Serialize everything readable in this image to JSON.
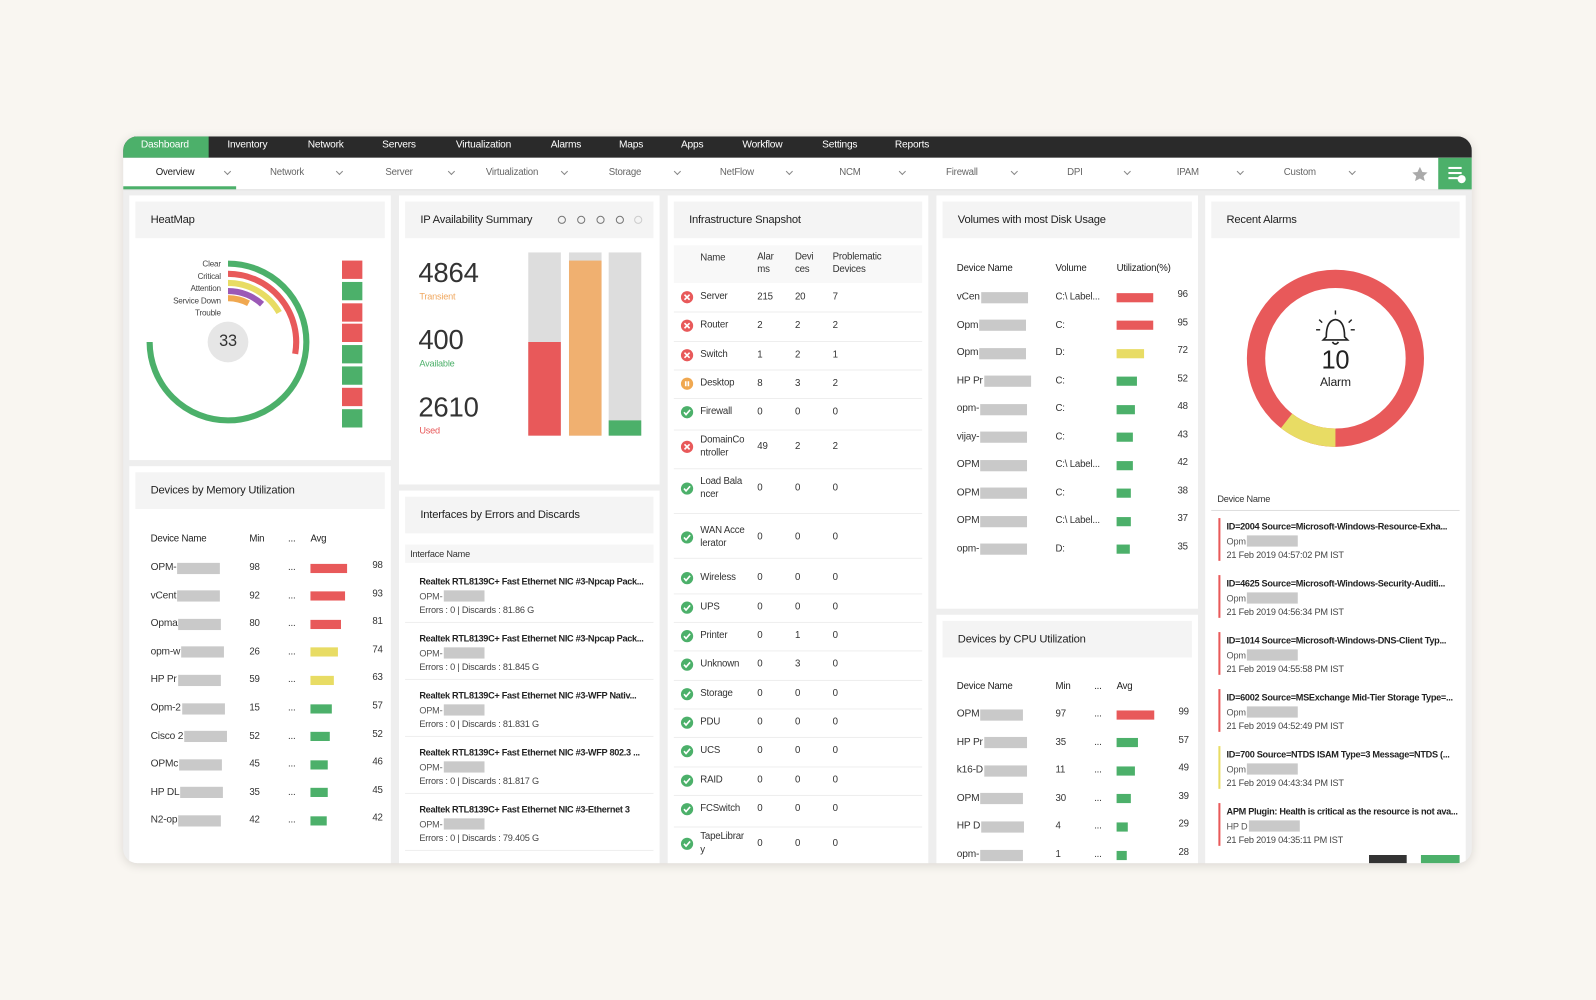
{
  "nav": {
    "tabs": [
      "Dashboard",
      "Inventory",
      "Network",
      "Servers",
      "Virtualization",
      "Alarms",
      "Maps",
      "Apps",
      "Workflow",
      "Settings",
      "Reports"
    ]
  },
  "subnav": {
    "tabs": [
      "Overview",
      "Network",
      "Server",
      "Virtualization",
      "Storage",
      "NetFlow",
      "NCM",
      "Firewall",
      "DPI",
      "IPAM",
      "Custom"
    ]
  },
  "heatmap": {
    "title": "HeatMap",
    "legend": [
      "Clear",
      "Critical",
      "Attention",
      "Service Down",
      "Trouble"
    ],
    "total": 33
  },
  "ip_availability": {
    "title": "IP Availability Summary",
    "stats": [
      {
        "value": 4864,
        "label": "Transient",
        "color": "#f0a860"
      },
      {
        "value": 400,
        "label": "Available",
        "color": "#4cb06a"
      },
      {
        "value": 2610,
        "label": "Used",
        "color": "#e8595a"
      }
    ]
  },
  "infrastructure": {
    "title": "Infrastructure Snapshot",
    "columns": [
      "Name",
      "Alarms",
      "Devices",
      "Problematic Devices"
    ],
    "rows": [
      {
        "icon": "cross",
        "color": "#e8595a",
        "name": "Server",
        "alarms": 215,
        "devices": 20,
        "problematic": 7
      },
      {
        "icon": "cross",
        "color": "#e8595a",
        "name": "Router",
        "alarms": 2,
        "devices": 2,
        "problematic": 2
      },
      {
        "icon": "cross",
        "color": "#e8595a",
        "name": "Switch",
        "alarms": 1,
        "devices": 2,
        "problematic": 1
      },
      {
        "icon": "pause",
        "color": "#f0a850",
        "name": "Desktop",
        "alarms": 8,
        "devices": 3,
        "problematic": 2
      },
      {
        "icon": "check",
        "color": "#4cb06a",
        "name": "Firewall",
        "alarms": 0,
        "devices": 0,
        "problematic": 0
      },
      {
        "icon": "cross",
        "color": "#e8595a",
        "name": "DomainController",
        "alarms": 49,
        "devices": 2,
        "problematic": 2
      },
      {
        "icon": "check",
        "color": "#4cb06a",
        "name": "Load Balancer",
        "alarms": 0,
        "devices": 0,
        "problematic": 0
      },
      {
        "icon": "check",
        "color": "#4cb06a",
        "name": "WAN Accelerator",
        "alarms": 0,
        "devices": 0,
        "problematic": 0
      },
      {
        "icon": "check",
        "color": "#4cb06a",
        "name": "Wireless",
        "alarms": 0,
        "devices": 0,
        "problematic": 0
      },
      {
        "icon": "check",
        "color": "#4cb06a",
        "name": "UPS",
        "alarms": 0,
        "devices": 0,
        "problematic": 0
      },
      {
        "icon": "check",
        "color": "#4cb06a",
        "name": "Printer",
        "alarms": 0,
        "devices": 1,
        "problematic": 0
      },
      {
        "icon": "check",
        "color": "#4cb06a",
        "name": "Unknown",
        "alarms": 0,
        "devices": 3,
        "problematic": 0
      },
      {
        "icon": "check",
        "color": "#4cb06a",
        "name": "Storage",
        "alarms": 0,
        "devices": 0,
        "problematic": 0
      },
      {
        "icon": "check",
        "color": "#4cb06a",
        "name": "PDU",
        "alarms": 0,
        "devices": 0,
        "problematic": 0
      },
      {
        "icon": "check",
        "color": "#4cb06a",
        "name": "UCS",
        "alarms": 0,
        "devices": 0,
        "problematic": 0
      },
      {
        "icon": "check",
        "color": "#4cb06a",
        "name": "RAID",
        "alarms": 0,
        "devices": 0,
        "problematic": 0
      },
      {
        "icon": "check",
        "color": "#4cb06a",
        "name": "FCSwitch",
        "alarms": 0,
        "devices": 0,
        "problematic": 0
      },
      {
        "icon": "check",
        "color": "#4cb06a",
        "name": "TapeLibrary",
        "alarms": 0,
        "devices": 0,
        "problematic": 0
      }
    ]
  },
  "memory": {
    "title": "Devices by Memory Utilization",
    "columns": [
      "Device Name",
      "Min",
      "...",
      "Avg"
    ],
    "rows": [
      {
        "name": "OPM-",
        "min": 98,
        "mid": "...",
        "avg": 98,
        "color": "#e8595a"
      },
      {
        "name": "vCent",
        "min": 92,
        "mid": "...",
        "avg": 93,
        "color": "#e8595a"
      },
      {
        "name": "Opma",
        "min": 80,
        "mid": "...",
        "avg": 81,
        "color": "#e8595a"
      },
      {
        "name": "opm-w",
        "min": 26,
        "mid": "...",
        "avg": 74,
        "color": "#e8dc64"
      },
      {
        "name": "HP Pr",
        "min": 59,
        "mid": "...",
        "avg": 63,
        "color": "#e8dc64"
      },
      {
        "name": "Opm-2",
        "min": 15,
        "mid": "...",
        "avg": 57,
        "color": "#4cb06a"
      },
      {
        "name": "Cisco 2",
        "min": 52,
        "mid": "...",
        "avg": 52,
        "color": "#4cb06a"
      },
      {
        "name": "OPMc",
        "min": 45,
        "mid": "...",
        "avg": 46,
        "color": "#4cb06a"
      },
      {
        "name": "HP DL",
        "min": 35,
        "mid": "...",
        "avg": 45,
        "color": "#4cb06a"
      },
      {
        "name": "N2-op",
        "min": 42,
        "mid": "...",
        "avg": 42,
        "color": "#4cb06a"
      }
    ]
  },
  "interfaces": {
    "title": "Interfaces by Errors and Discards",
    "column": "Interface Name",
    "items": [
      {
        "name": "Realtek RTL8139C+ Fast Ethernet NIC #3-Npcap Pack...",
        "device": "OPM-",
        "stats": "Errors : 0 | Discards : 81.86 G"
      },
      {
        "name": "Realtek RTL8139C+ Fast Ethernet NIC #3-Npcap Pack...",
        "device": "OPM-",
        "stats": "Errors : 0 | Discards : 81.845 G"
      },
      {
        "name": "Realtek RTL8139C+ Fast Ethernet NIC #3-WFP Nativ...",
        "device": "OPM-",
        "stats": "Errors : 0 | Discards : 81.831 G"
      },
      {
        "name": "Realtek RTL8139C+ Fast Ethernet NIC #3-WFP 802.3 ...",
        "device": "OPM-",
        "stats": "Errors : 0 | Discards : 81.817 G"
      },
      {
        "name": "Realtek RTL8139C+ Fast Ethernet NIC #3-Ethernet 3",
        "device": "OPM-",
        "stats": "Errors : 0 | Discards : 79.405 G"
      }
    ]
  },
  "volumes": {
    "title": "Volumes with most Disk Usage",
    "columns": [
      "Device Name",
      "Volume",
      "Utilization(%)"
    ],
    "rows": [
      {
        "name": "vCen",
        "volume": "C:\\ Label...",
        "value": 96,
        "color": "#e8595a"
      },
      {
        "name": "Opm",
        "volume": "C:",
        "value": 95,
        "color": "#e8595a"
      },
      {
        "name": "Opm",
        "volume": "D:",
        "value": 72,
        "color": "#e8dc64"
      },
      {
        "name": "HP Pr",
        "volume": "C:",
        "value": 52,
        "color": "#4cb06a"
      },
      {
        "name": "opm-",
        "volume": "C:",
        "value": 48,
        "color": "#4cb06a"
      },
      {
        "name": "vijay-",
        "volume": "C:",
        "value": 43,
        "color": "#4cb06a"
      },
      {
        "name": "OPM",
        "volume": "C:\\ Label...",
        "value": 42,
        "color": "#4cb06a"
      },
      {
        "name": "OPM",
        "volume": "C:",
        "value": 38,
        "color": "#4cb06a"
      },
      {
        "name": "OPM",
        "volume": "C:\\ Label...",
        "value": 37,
        "color": "#4cb06a"
      },
      {
        "name": "opm-",
        "volume": "D:",
        "value": 35,
        "color": "#4cb06a"
      }
    ]
  },
  "cpu": {
    "title": "Devices by CPU Utilization",
    "columns": [
      "Device Name",
      "Min",
      "...",
      "Avg"
    ],
    "rows": [
      {
        "name": "OPM",
        "min": 97,
        "mid": "...",
        "avg": 99,
        "color": "#e8595a"
      },
      {
        "name": "HP Pr",
        "min": 35,
        "mid": "...",
        "avg": 57,
        "color": "#4cb06a"
      },
      {
        "name": "k16-D",
        "min": 11,
        "mid": "...",
        "avg": 49,
        "color": "#4cb06a"
      },
      {
        "name": "OPM",
        "min": 30,
        "mid": "...",
        "avg": 39,
        "color": "#4cb06a"
      },
      {
        "name": "HP D",
        "min": 4,
        "mid": "...",
        "avg": 29,
        "color": "#4cb06a"
      },
      {
        "name": "opm-",
        "min": 1,
        "mid": "...",
        "avg": 28,
        "color": "#4cb06a"
      }
    ]
  },
  "recent_alarms": {
    "title": "Recent Alarms",
    "count": 10,
    "count_label": "Alarm",
    "column": "Device Name",
    "items": [
      {
        "message": "ID=2004 Source=Microsoft-Windows-Resource-Exha...",
        "device": "Opm",
        "time": "21 Feb 2019 04:57:02 PM IST",
        "color": "#e8595a"
      },
      {
        "message": "ID=4625 Source=Microsoft-Windows-Security-Auditi...",
        "device": "Opm",
        "time": "21 Feb 2019 04:56:34 PM IST",
        "color": "#e8595a"
      },
      {
        "message": "ID=1014 Source=Microsoft-Windows-DNS-Client Typ...",
        "device": "Opm",
        "time": "21 Feb 2019 04:55:58 PM IST",
        "color": "#e8595a"
      },
      {
        "message": "ID=6002 Source=MSExchange Mid-Tier Storage Type=...",
        "device": "Opm",
        "time": "21 Feb 2019 04:52:49 PM IST",
        "color": "#e8595a"
      },
      {
        "message": "ID=700 Source=NTDS ISAM Type=3 Message=NTDS (...",
        "device": "Opm",
        "time": "21 Feb 2019 04:43:34 PM IST",
        "color": "#e8dc64"
      },
      {
        "message": "APM Plugin: Health is critical as the resource is not ava...",
        "device": "HP D",
        "time": "21 Feb 2019 04:35:11 PM IST",
        "color": "#e8595a"
      }
    ]
  }
}
